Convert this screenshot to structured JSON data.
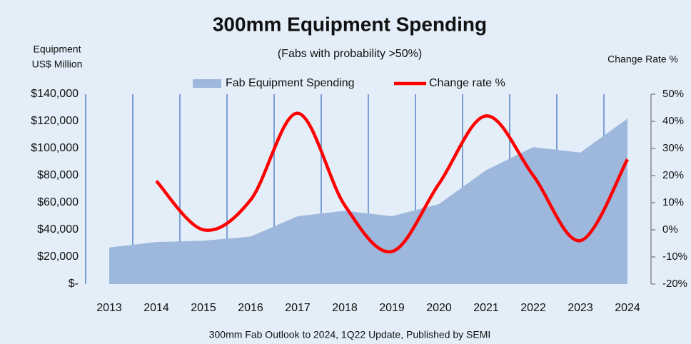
{
  "chart_data": {
    "type": "combo",
    "title": "300mm Equipment Spending",
    "subtitle": "(Fabs with probability >50%)",
    "ylabel": [
      "Equipment",
      "US$ Million"
    ],
    "y2label": "Change Rate %",
    "source": "300mm Fab Outlook to 2024, 1Q22 Update, Published by SEMI",
    "legend": "top",
    "categories": [
      "2013",
      "2014",
      "2015",
      "2016",
      "2017",
      "2018",
      "2019",
      "2020",
      "2021",
      "2022",
      "2023",
      "2024"
    ],
    "series": [
      {
        "name": "Fab Equipment Spending",
        "type": "area",
        "color": "#9db8dc",
        "values": [
          27000,
          31000,
          32000,
          35000,
          50000,
          54000,
          50000,
          59000,
          84000,
          101000,
          97000,
          122000
        ]
      },
      {
        "name": "Change rate %",
        "type": "line",
        "axis": "y2",
        "color": "#ff0000",
        "smooth": true,
        "values": [
          null,
          18,
          0,
          11,
          43,
          9,
          -8,
          17,
          42,
          20,
          -4,
          26
        ]
      }
    ],
    "ylim": [
      0,
      140000
    ],
    "yticks": [
      {
        "value": 0,
        "label": "$-"
      },
      {
        "value": 20000,
        "label": "$20,000"
      },
      {
        "value": 40000,
        "label": "$40,000"
      },
      {
        "value": 60000,
        "label": "$60,000"
      },
      {
        "value": 80000,
        "label": "$80,000"
      },
      {
        "value": 100000,
        "label": "$100,000"
      },
      {
        "value": 120000,
        "label": "$120,000"
      },
      {
        "value": 140000,
        "label": "$140,000"
      }
    ],
    "y2lim": [
      -20,
      50
    ],
    "y2ticks": [
      {
        "value": -20,
        "label": "-20%"
      },
      {
        "value": -10,
        "label": "-10%"
      },
      {
        "value": 0,
        "label": "0%"
      },
      {
        "value": 10,
        "label": "10%"
      },
      {
        "value": 20,
        "label": "20%"
      },
      {
        "value": 30,
        "label": "30%"
      },
      {
        "value": 40,
        "label": "40%"
      },
      {
        "value": 50,
        "label": "50%"
      }
    ],
    "category_separators": true
  }
}
